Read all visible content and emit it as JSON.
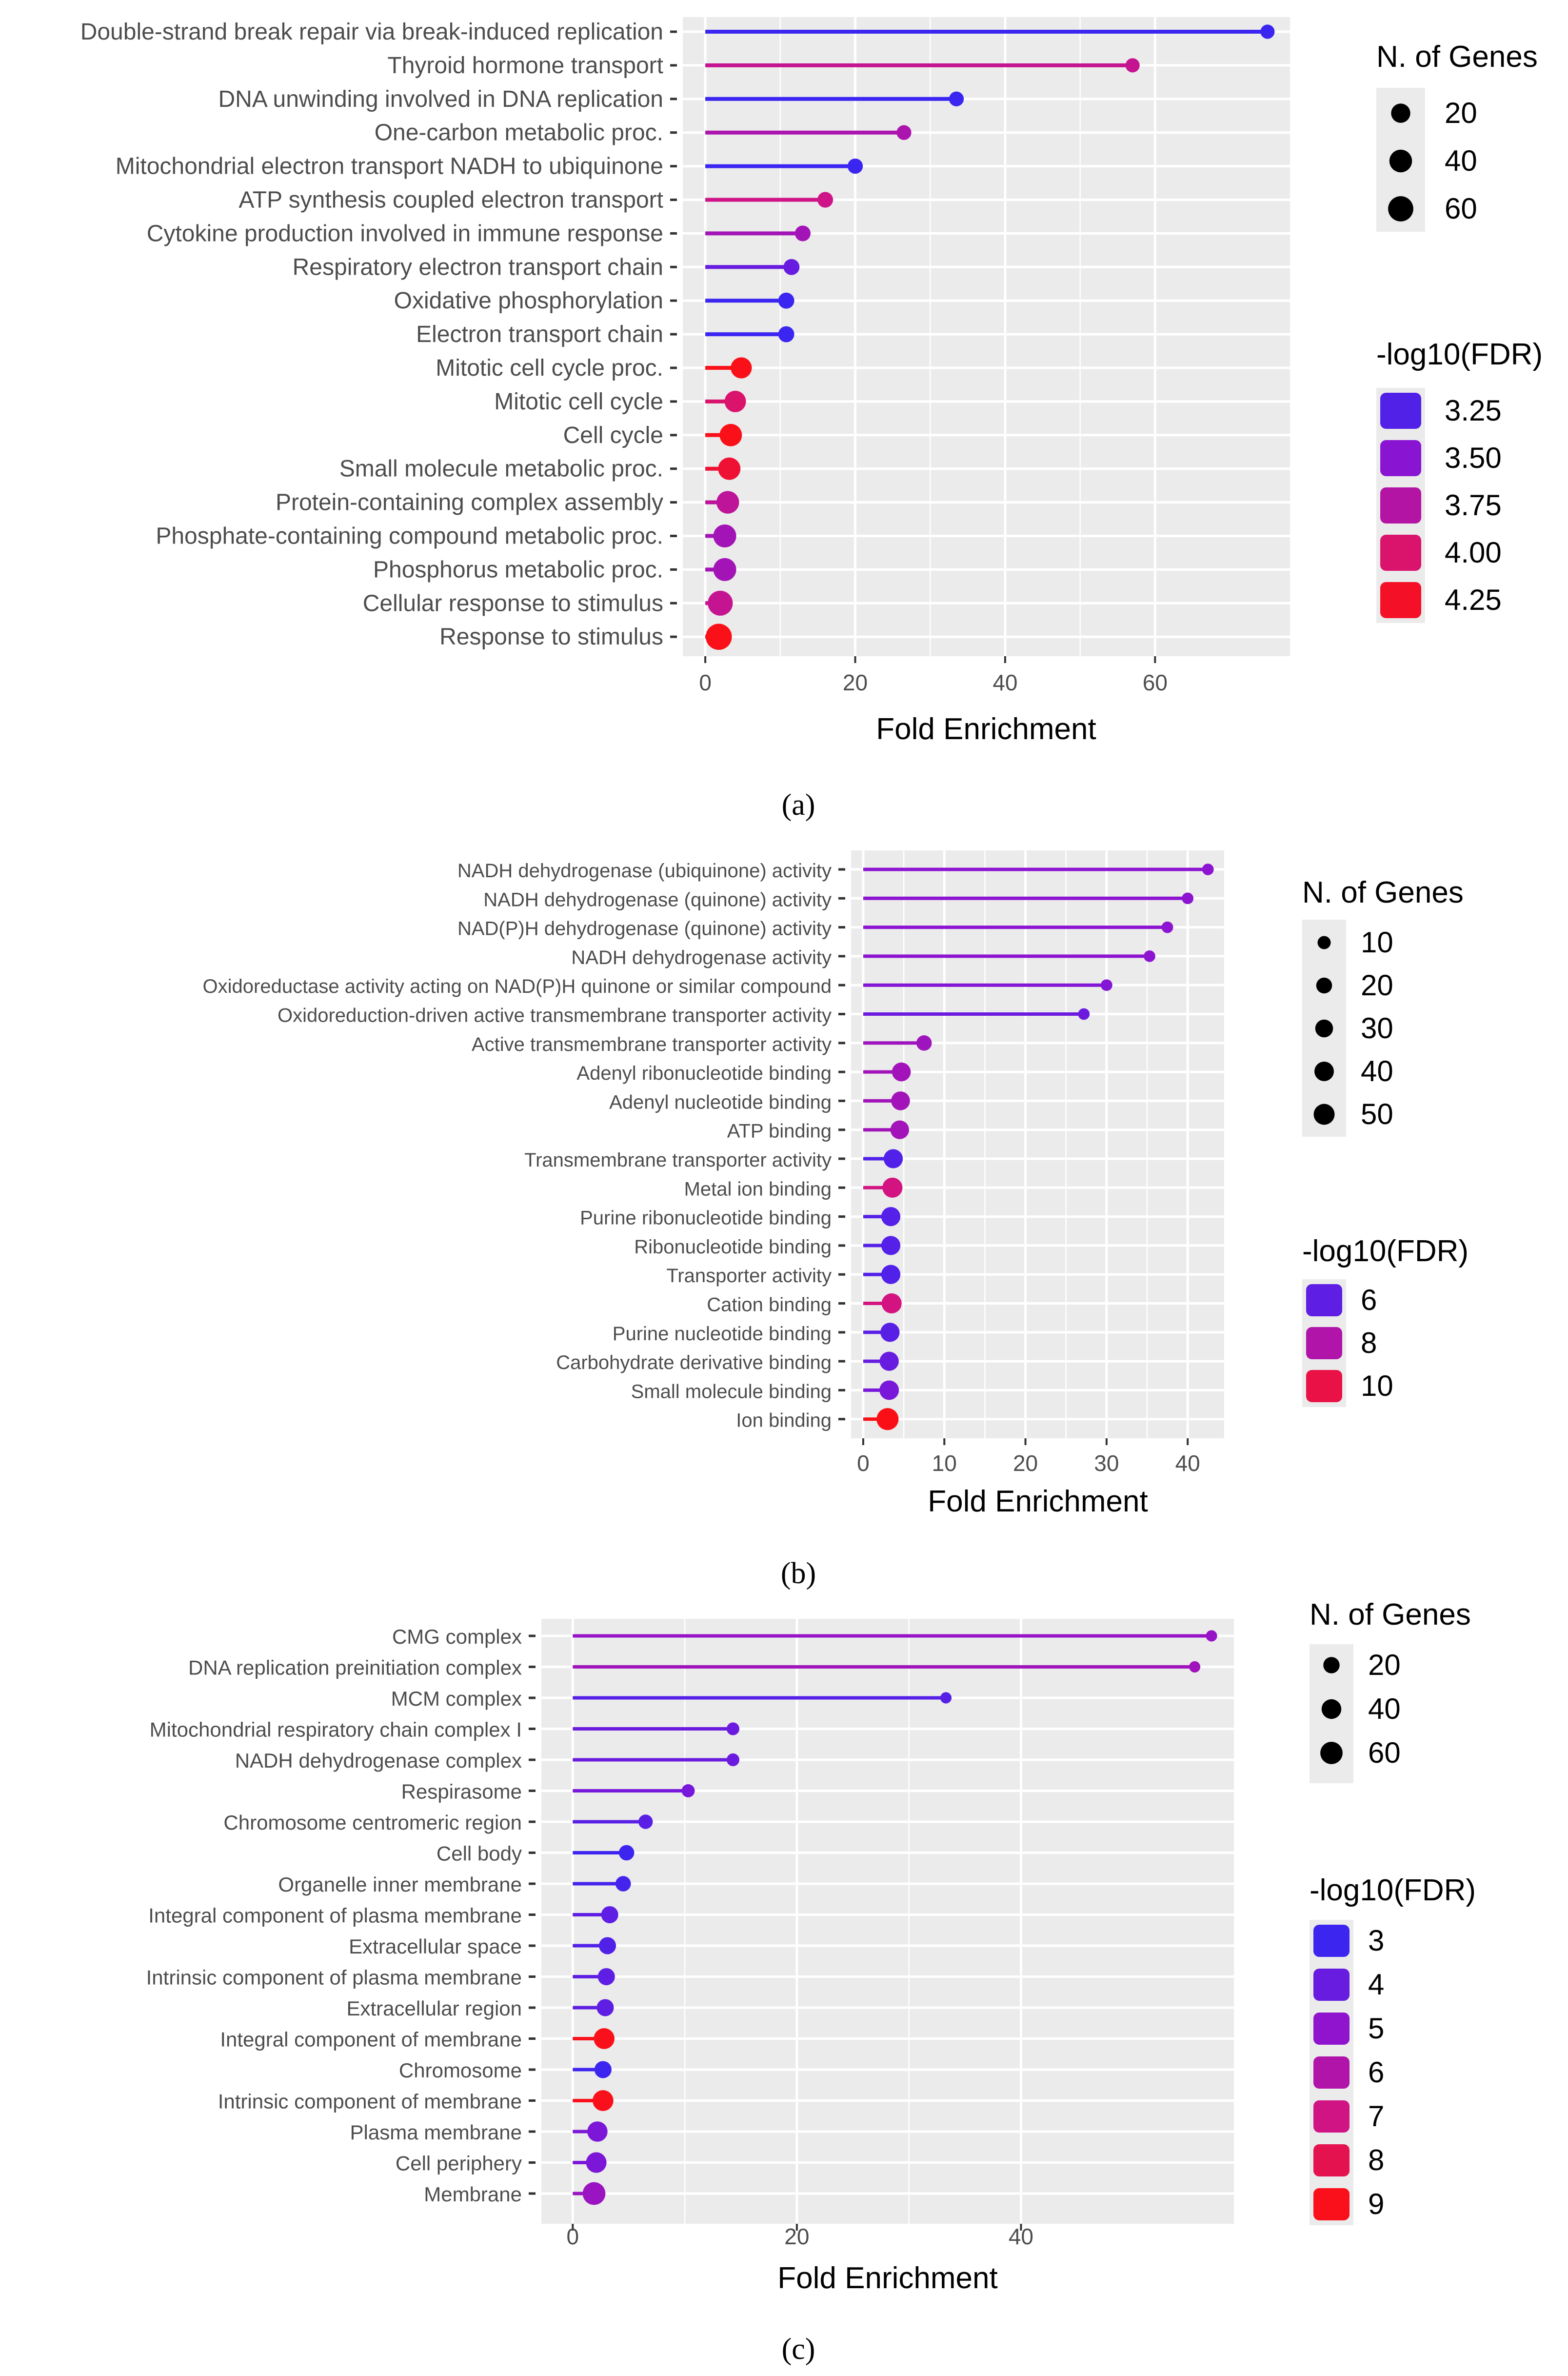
{
  "chart_data": [
    {
      "type": "lollipop",
      "panel": "a",
      "caption": "(a)",
      "xlabel": "Fold Enrichment",
      "xlim": [
        -3,
        78
      ],
      "xticks": [
        0,
        20,
        40,
        60
      ],
      "colorbar_range": [
        3.1,
        4.35
      ],
      "size_legend": {
        "title": "N. of Genes",
        "entries": [
          {
            "label": "20",
            "value": 20
          },
          {
            "label": "40",
            "value": 40
          },
          {
            "label": "60",
            "value": 60
          }
        ],
        "range": [
          2,
          70
        ]
      },
      "color_legend": {
        "title": "-log10(FDR)",
        "entries": [
          {
            "label": "3.25",
            "value": 3.25
          },
          {
            "label": "3.50",
            "value": 3.5
          },
          {
            "label": "3.75",
            "value": 3.75
          },
          {
            "label": "4.00",
            "value": 4.0
          },
          {
            "label": "4.25",
            "value": 4.25
          }
        ]
      },
      "terms": [
        {
          "term": "Double-strand break repair via break-induced replication",
          "fold": 75,
          "genes": 4,
          "fdr": 3.15
        },
        {
          "term": "Thyroid hormone transport",
          "fold": 57,
          "genes": 4,
          "fdr": 3.85
        },
        {
          "term": "DNA unwinding involved in DNA replication",
          "fold": 33.5,
          "genes": 5,
          "fdr": 3.15
        },
        {
          "term": "One-carbon metabolic proc.",
          "fold": 26.5,
          "genes": 5,
          "fdr": 3.7
        },
        {
          "term": "Mitochondrial electron transport NADH to ubiquinone",
          "fold": 20,
          "genes": 6,
          "fdr": 3.15
        },
        {
          "term": "ATP synthesis coupled electron transport",
          "fold": 16,
          "genes": 7,
          "fdr": 3.9
        },
        {
          "term": "Cytokine production involved in immune response",
          "fold": 13,
          "genes": 7,
          "fdr": 3.65
        },
        {
          "term": "Respiratory electron transport chain",
          "fold": 11.5,
          "genes": 8,
          "fdr": 3.35
        },
        {
          "term": "Oxidative phosphorylation",
          "fold": 10.8,
          "genes": 8,
          "fdr": 3.15
        },
        {
          "term": "Electron transport chain",
          "fold": 10.8,
          "genes": 8,
          "fdr": 3.15
        },
        {
          "term": "Mitotic cell cycle proc.",
          "fold": 4.8,
          "genes": 30,
          "fdr": 4.3
        },
        {
          "term": "Mitotic cell cycle",
          "fold": 4.0,
          "genes": 32,
          "fdr": 4.0
        },
        {
          "term": "Cell cycle",
          "fold": 3.4,
          "genes": 38,
          "fdr": 4.3
        },
        {
          "term": "Small molecule metabolic proc.",
          "fold": 3.2,
          "genes": 38,
          "fdr": 4.2
        },
        {
          "term": "Protein-containing complex assembly",
          "fold": 3.0,
          "genes": 40,
          "fdr": 3.8
        },
        {
          "term": "Phosphate-containing compound metabolic proc.",
          "fold": 2.6,
          "genes": 42,
          "fdr": 3.65
        },
        {
          "term": "Phosphorus metabolic proc.",
          "fold": 2.6,
          "genes": 42,
          "fdr": 3.65
        },
        {
          "term": "Cellular response to stimulus",
          "fold": 2.0,
          "genes": 58,
          "fdr": 3.85
        },
        {
          "term": "Response to stimulus",
          "fold": 1.8,
          "genes": 68,
          "fdr": 4.3
        }
      ]
    },
    {
      "type": "lollipop",
      "panel": "b",
      "caption": "(b)",
      "xlabel": "Fold Enrichment",
      "xlim": [
        -1.5,
        44.5
      ],
      "xticks": [
        0,
        10,
        20,
        30,
        40
      ],
      "colorbar_range": [
        5.0,
        11.0
      ],
      "size_legend": {
        "title": "N. of Genes",
        "entries": [
          {
            "label": "10",
            "value": 10
          },
          {
            "label": "20",
            "value": 20
          },
          {
            "label": "30",
            "value": 30
          },
          {
            "label": "40",
            "value": 40
          },
          {
            "label": "50",
            "value": 50
          }
        ],
        "range": [
          2,
          70
        ]
      },
      "color_legend": {
        "title": "-log10(FDR)",
        "entries": [
          {
            "label": "6",
            "value": 6
          },
          {
            "label": "8",
            "value": 8
          },
          {
            "label": "10",
            "value": 10
          }
        ]
      },
      "terms": [
        {
          "term": "NADH dehydrogenase (ubiquinone) activity",
          "fold": 42.5,
          "genes": 6,
          "fdr": 7.0
        },
        {
          "term": "NADH dehydrogenase (quinone) activity",
          "fold": 40,
          "genes": 6,
          "fdr": 7.0
        },
        {
          "term": "NAD(P)H dehydrogenase (quinone) activity",
          "fold": 37.5,
          "genes": 6,
          "fdr": 7.0
        },
        {
          "term": "NADH dehydrogenase activity",
          "fold": 35.3,
          "genes": 6,
          "fdr": 7.0
        },
        {
          "term": "Oxidoreductase activity acting on NAD(P)H quinone or similar compound",
          "fold": 30,
          "genes": 6,
          "fdr": 6.8
        },
        {
          "term": "Oxidoreduction-driven active transmembrane transporter activity",
          "fold": 27.2,
          "genes": 6,
          "fdr": 6.3
        },
        {
          "term": "Active transmembrane transporter activity",
          "fold": 7.5,
          "genes": 18,
          "fdr": 7.5
        },
        {
          "term": "Adenyl ribonucleotide binding",
          "fold": 4.7,
          "genes": 36,
          "fdr": 7.6
        },
        {
          "term": "Adenyl nucleotide binding",
          "fold": 4.6,
          "genes": 36,
          "fdr": 7.6
        },
        {
          "term": "ATP binding",
          "fold": 4.5,
          "genes": 35,
          "fdr": 7.6
        },
        {
          "term": "Transmembrane transporter activity",
          "fold": 3.7,
          "genes": 38,
          "fdr": 5.7
        },
        {
          "term": "Metal ion binding",
          "fold": 3.6,
          "genes": 44,
          "fdr": 9.0
        },
        {
          "term": "Purine ribonucleotide binding",
          "fold": 3.4,
          "genes": 38,
          "fdr": 5.8
        },
        {
          "term": "Ribonucleotide binding",
          "fold": 3.4,
          "genes": 38,
          "fdr": 5.8
        },
        {
          "term": "Transporter activity",
          "fold": 3.4,
          "genes": 38,
          "fdr": 5.7
        },
        {
          "term": "Cation binding",
          "fold": 3.5,
          "genes": 44,
          "fdr": 9.0
        },
        {
          "term": "Purine nucleotide binding",
          "fold": 3.3,
          "genes": 38,
          "fdr": 5.9
        },
        {
          "term": "Carbohydrate derivative binding",
          "fold": 3.2,
          "genes": 38,
          "fdr": 6.2
        },
        {
          "term": "Small molecule binding",
          "fold": 3.2,
          "genes": 40,
          "fdr": 6.6
        },
        {
          "term": "Ion binding",
          "fold": 3.0,
          "genes": 58,
          "fdr": 10.8
        }
      ]
    },
    {
      "type": "lollipop",
      "panel": "c",
      "caption": "(c)",
      "xlabel": "Fold Enrichment",
      "xlim": [
        -2.8,
        59
      ],
      "xticks": [
        0,
        20,
        40
      ],
      "colorbar_range": [
        2.7,
        9.3
      ],
      "size_legend": {
        "title": "N. of Genes",
        "entries": [
          {
            "label": "20",
            "value": 20
          },
          {
            "label": "40",
            "value": 40
          },
          {
            "label": "60",
            "value": 60
          }
        ],
        "range": [
          2,
          70
        ]
      },
      "color_legend": {
        "title": "-log10(FDR)",
        "entries": [
          {
            "label": "3",
            "value": 3
          },
          {
            "label": "4",
            "value": 4
          },
          {
            "label": "5",
            "value": 5
          },
          {
            "label": "6",
            "value": 6
          },
          {
            "label": "7",
            "value": 7
          },
          {
            "label": "8",
            "value": 8
          },
          {
            "label": "9",
            "value": 9
          }
        ]
      },
      "terms": [
        {
          "term": "CMG complex",
          "fold": 57,
          "genes": 4,
          "fdr": 5.2
        },
        {
          "term": "DNA replication preinitiation complex",
          "fold": 55.5,
          "genes": 4,
          "fdr": 5.5
        },
        {
          "term": "MCM complex",
          "fold": 33.3,
          "genes": 4,
          "fdr": 3.6
        },
        {
          "term": "Mitochondrial respiratory chain complex I",
          "fold": 14.3,
          "genes": 7,
          "fdr": 4.1
        },
        {
          "term": "NADH dehydrogenase complex",
          "fold": 14.3,
          "genes": 7,
          "fdr": 4.1
        },
        {
          "term": "Respirasome",
          "fold": 10.3,
          "genes": 8,
          "fdr": 4.4
        },
        {
          "term": "Chromosome centromeric region",
          "fold": 6.5,
          "genes": 12,
          "fdr": 3.7
        },
        {
          "term": "Cell body",
          "fold": 4.8,
          "genes": 16,
          "fdr": 3.0
        },
        {
          "term": "Organelle inner membrane",
          "fold": 4.5,
          "genes": 16,
          "fdr": 3.2
        },
        {
          "term": "Integral component of plasma membrane",
          "fold": 3.3,
          "genes": 24,
          "fdr": 3.8
        },
        {
          "term": "Extracellular space",
          "fold": 3.1,
          "genes": 24,
          "fdr": 3.5
        },
        {
          "term": "Intrinsic component of plasma membrane",
          "fold": 3.0,
          "genes": 24,
          "fdr": 3.8
        },
        {
          "term": "Extracellular region",
          "fold": 2.9,
          "genes": 24,
          "fdr": 3.8
        },
        {
          "term": "Integral component of membrane",
          "fold": 2.8,
          "genes": 48,
          "fdr": 9.0
        },
        {
          "term": "Chromosome",
          "fold": 2.7,
          "genes": 24,
          "fdr": 3.0
        },
        {
          "term": "Intrinsic component of membrane",
          "fold": 2.7,
          "genes": 48,
          "fdr": 9.0
        },
        {
          "term": "Plasma membrane",
          "fold": 2.2,
          "genes": 44,
          "fdr": 4.5
        },
        {
          "term": "Cell periphery",
          "fold": 2.1,
          "genes": 46,
          "fdr": 4.5
        },
        {
          "term": "Membrane",
          "fold": 1.9,
          "genes": 64,
          "fdr": 5.3
        }
      ]
    }
  ]
}
